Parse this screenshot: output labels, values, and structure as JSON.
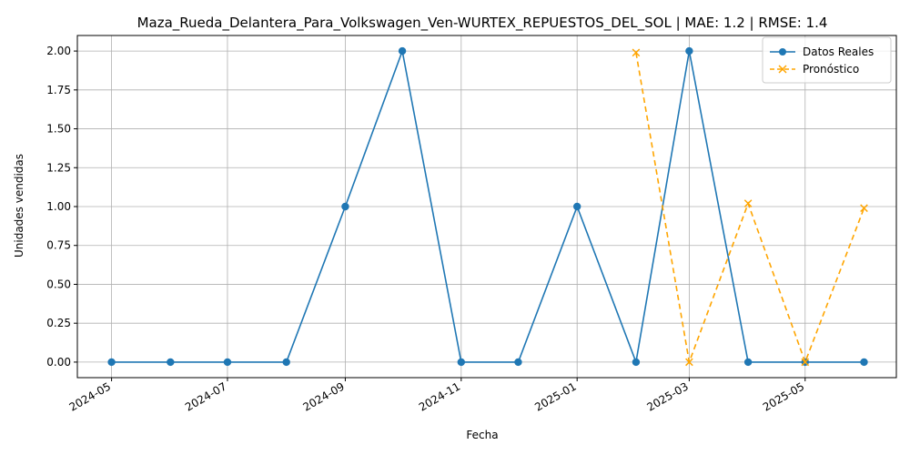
{
  "chart_data": {
    "type": "line",
    "title": "Maza_Rueda_Delantera_Para_Volkswagen_Ven-WURTEX_REPUESTOS_DEL_SOL | MAE: 1.2 | RMSE: 1.4",
    "xlabel": "Fecha",
    "ylabel": "Unidades vendidas",
    "x_tick_labels": [
      "2024-05",
      "2024-07",
      "2024-09",
      "2024-11",
      "2025-01",
      "2025-03",
      "2025-05"
    ],
    "y_ticks": [
      0.0,
      0.25,
      0.5,
      0.75,
      1.0,
      1.25,
      1.5,
      1.75,
      2.0
    ],
    "y_tick_labels": [
      "0.00",
      "0.25",
      "0.50",
      "0.75",
      "1.00",
      "1.25",
      "1.50",
      "1.75",
      "2.00"
    ],
    "ylim": [
      -0.1,
      2.1
    ],
    "xlim": [
      "2024-04-13",
      "2025-06-18"
    ],
    "grid": true,
    "legend_position": "top-right",
    "series": [
      {
        "name": "Datos Reales",
        "color": "#1f77b4",
        "line_style": "solid",
        "marker": "circle",
        "x": [
          "2024-05-01",
          "2024-06-01",
          "2024-07-01",
          "2024-08-01",
          "2024-09-01",
          "2024-10-01",
          "2024-11-01",
          "2024-12-01",
          "2025-01-01",
          "2025-02-01",
          "2025-03-01",
          "2025-04-01",
          "2025-05-01",
          "2025-06-01"
        ],
        "values": [
          0,
          0,
          0,
          0,
          1,
          2,
          0,
          0,
          1,
          0,
          2,
          0,
          0,
          0
        ]
      },
      {
        "name": "Pronóstico",
        "color": "#ffa500",
        "line_style": "dashed",
        "marker": "x",
        "x": [
          "2025-02-01",
          "2025-03-01",
          "2025-04-01",
          "2025-05-01",
          "2025-06-01"
        ],
        "values": [
          1.99,
          0.0,
          1.02,
          0.0,
          0.99
        ]
      }
    ]
  }
}
